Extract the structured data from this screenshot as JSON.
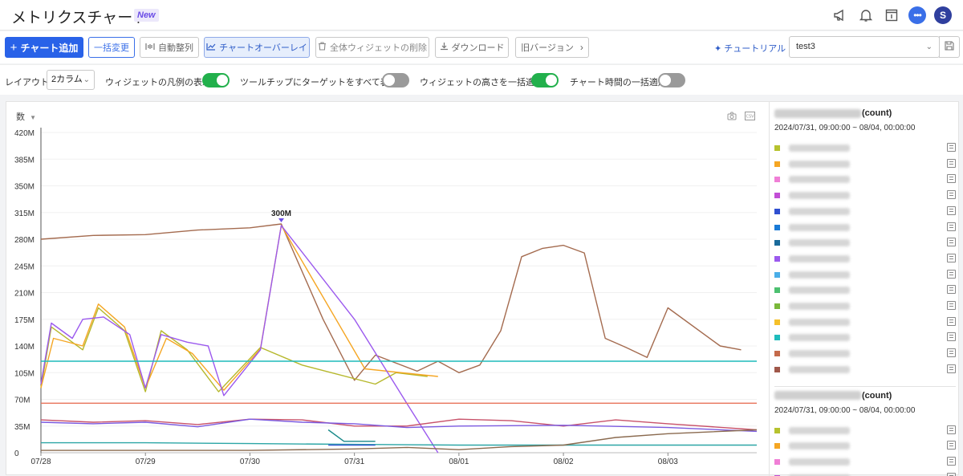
{
  "header": {
    "title": "メトリクスチャート",
    "badge": "New",
    "avatar_letter": "S"
  },
  "toolbar": {
    "add_chart": "チャート追加",
    "bulk_change": "一括変更",
    "auto_arrange": "自動整列",
    "chart_overlay": "チャートオーバーレイ",
    "delete_all": "全体ウィジェットの削除",
    "download": "ダウンロード",
    "old_version": "旧バージョン",
    "tutorial": "チュートリアル",
    "preset_value": "test3"
  },
  "options": {
    "layout_label": "レイアウト",
    "layout_value": "2カラム",
    "legend_label": "ウィジェットの凡例の表示",
    "legend_on": true,
    "tooltip_label": "ツールチップにターゲットをすべて表示",
    "tooltip_on": false,
    "height_label": "ウィジェットの高さを一括適用",
    "height_on": true,
    "time_label": "チャート時間の一括適用",
    "time_on": false
  },
  "panel": {
    "metric": "数",
    "camera_icon": "camera-icon",
    "csv_icon": "csv-icon",
    "peak_label": "300M"
  },
  "chart_data": {
    "type": "line",
    "x": [
      "07/28",
      "07/29",
      "07/30",
      "07/31",
      "08/01",
      "08/02",
      "08/03"
    ],
    "y_ticks": [
      "0",
      "35M",
      "70M",
      "105M",
      "140M",
      "175M",
      "210M",
      "245M",
      "280M",
      "315M",
      "350M",
      "385M",
      "420M"
    ],
    "ylim": [
      0,
      420
    ],
    "annotation": "300M",
    "series": [
      {
        "color": "#a46b4f",
        "values": [
          [
            0,
            280
          ],
          [
            0.5,
            285
          ],
          [
            1.0,
            286
          ],
          [
            1.5,
            292
          ],
          [
            2.0,
            295
          ],
          [
            2.3,
            300
          ],
          [
            2.7,
            175
          ],
          [
            3.0,
            95
          ],
          [
            3.2,
            128
          ],
          [
            3.6,
            107
          ],
          [
            3.8,
            120
          ],
          [
            4.0,
            105
          ],
          [
            4.2,
            115
          ],
          [
            4.4,
            160
          ],
          [
            4.6,
            257
          ],
          [
            4.8,
            268
          ],
          [
            5.0,
            272
          ],
          [
            5.2,
            262
          ],
          [
            5.4,
            150
          ],
          [
            5.6,
            138
          ],
          [
            5.8,
            125
          ],
          [
            6.0,
            190
          ],
          [
            6.5,
            140
          ],
          [
            6.7,
            135
          ]
        ]
      },
      {
        "color": "#b6b82c",
        "values": [
          [
            0,
            85
          ],
          [
            0.1,
            165
          ],
          [
            0.4,
            135
          ],
          [
            0.55,
            190
          ],
          [
            0.8,
            160
          ],
          [
            1.0,
            80
          ],
          [
            1.15,
            160
          ],
          [
            1.4,
            135
          ],
          [
            1.7,
            80
          ],
          [
            2.1,
            138
          ],
          [
            2.5,
            115
          ],
          [
            3.2,
            90
          ],
          [
            3.4,
            105
          ],
          [
            3.7,
            100
          ]
        ]
      },
      {
        "color": "#f5a623",
        "values": [
          [
            0,
            85
          ],
          [
            0.12,
            150
          ],
          [
            0.4,
            140
          ],
          [
            0.55,
            195
          ],
          [
            0.8,
            165
          ],
          [
            1.0,
            85
          ],
          [
            1.2,
            150
          ],
          [
            1.45,
            130
          ],
          [
            1.75,
            82
          ],
          [
            2.1,
            136
          ],
          [
            2.3,
            298
          ],
          [
            3.1,
            110
          ],
          [
            3.8,
            100
          ]
        ]
      },
      {
        "color": "#9b59ee",
        "values": [
          [
            0,
            90
          ],
          [
            0.1,
            170
          ],
          [
            0.3,
            150
          ],
          [
            0.4,
            175
          ],
          [
            0.6,
            178
          ],
          [
            0.85,
            155
          ],
          [
            1.0,
            85
          ],
          [
            1.15,
            155
          ],
          [
            1.4,
            145
          ],
          [
            1.6,
            140
          ],
          [
            1.75,
            75
          ],
          [
            2.1,
            135
          ],
          [
            2.3,
            298
          ],
          [
            3.0,
            175
          ],
          [
            3.5,
            65
          ],
          [
            3.8,
            0
          ]
        ]
      },
      {
        "color": "#1fbcbc",
        "values": [
          [
            0,
            120
          ],
          [
            6.85,
            120
          ]
        ]
      },
      {
        "color": "#e8735a",
        "values": [
          [
            0,
            65
          ],
          [
            6.85,
            65
          ]
        ]
      },
      {
        "color": "#c8526a",
        "values": [
          [
            0,
            43
          ],
          [
            0.5,
            40
          ],
          [
            1.0,
            42
          ],
          [
            1.5,
            37
          ],
          [
            2.0,
            44
          ],
          [
            2.5,
            43
          ],
          [
            3.0,
            35
          ],
          [
            3.5,
            35
          ],
          [
            4.0,
            44
          ],
          [
            4.5,
            42
          ],
          [
            5.0,
            35
          ],
          [
            5.5,
            43
          ],
          [
            6.0,
            38
          ],
          [
            6.85,
            30
          ]
        ]
      },
      {
        "color": "#7b5ae0",
        "values": [
          [
            0,
            40
          ],
          [
            0.5,
            38
          ],
          [
            1.0,
            40
          ],
          [
            1.5,
            34
          ],
          [
            2.0,
            44
          ],
          [
            2.5,
            40
          ],
          [
            3.0,
            38
          ],
          [
            3.5,
            33
          ],
          [
            4.0,
            35
          ],
          [
            5.0,
            36
          ],
          [
            6.0,
            33
          ],
          [
            6.85,
            28
          ]
        ]
      },
      {
        "color": "#2ca6a6",
        "values": [
          [
            0,
            13
          ],
          [
            1.0,
            13
          ],
          [
            2.0,
            12
          ],
          [
            3.0,
            11
          ],
          [
            4.0,
            10
          ],
          [
            5.0,
            10
          ],
          [
            6.0,
            10
          ],
          [
            6.85,
            10
          ]
        ]
      },
      {
        "color": "#8a6a4f",
        "values": [
          [
            0,
            3
          ],
          [
            1.0,
            3
          ],
          [
            2.0,
            3
          ],
          [
            3.0,
            5
          ],
          [
            3.5,
            7
          ],
          [
            4.0,
            4
          ],
          [
            4.5,
            8
          ],
          [
            5.0,
            10
          ],
          [
            5.5,
            20
          ],
          [
            6.0,
            25
          ],
          [
            6.85,
            30
          ]
        ]
      },
      {
        "color": "#3a5bd0",
        "values": [
          [
            2.75,
            10
          ],
          [
            3.2,
            10
          ]
        ]
      },
      {
        "color": "#1a8a8a",
        "values": [
          [
            2.75,
            30
          ],
          [
            2.9,
            15
          ],
          [
            3.2,
            15
          ]
        ]
      }
    ]
  },
  "legend": {
    "groups": [
      {
        "unit": "(count)",
        "range": "2024/07/31, 09:00:00 ~ 08/04, 00:00:00",
        "colors": [
          "#b6c22e",
          "#f5a623",
          "#f07fd6",
          "#c24ed6",
          "#2f4fd0",
          "#1a7ad6",
          "#1a6a9a",
          "#9b59ee",
          "#4aaee8",
          "#4cc070",
          "#7ab83a",
          "#f5c02a",
          "#1fbcbc",
          "#c46a4a",
          "#a0584a"
        ]
      },
      {
        "unit": "(count)",
        "range": "2024/07/31, 09:00:00 ~ 08/04, 00:00:00",
        "colors": [
          "#b6c22e",
          "#f5a623",
          "#f07fd6",
          "#c24ed6"
        ]
      }
    ]
  }
}
